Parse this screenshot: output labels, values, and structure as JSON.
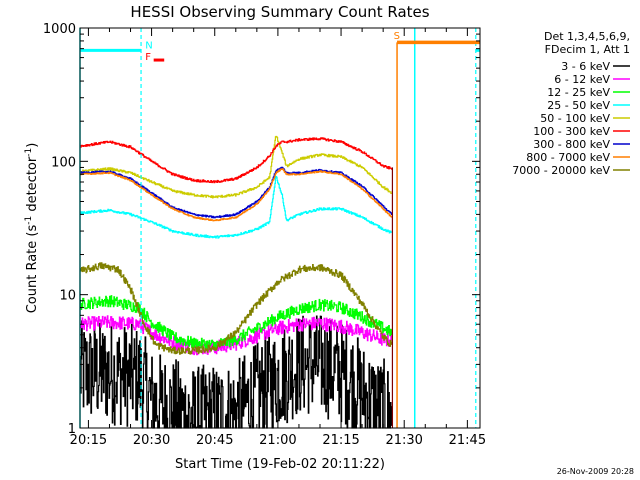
{
  "chart_data": {
    "type": "line",
    "title": "HESSI Observing Summary Count Rates",
    "xlabel": "Start Time (19-Feb-02 20:11:22)",
    "ylabel_main": "Count Rate (s",
    "ylabel_sup1": "-1",
    "ylabel_mid": " detector",
    "ylabel_sup2": "-1",
    "ylabel_end": ")",
    "yscale": "log",
    "ylim": [
      1,
      1000
    ],
    "xlim_min": [
      13,
      108
    ],
    "x_unit": "minutes after 20:00",
    "x_ticks": [
      {
        "value": 15,
        "label": "20:15"
      },
      {
        "value": 30,
        "label": "20:30"
      },
      {
        "value": 45,
        "label": "20:45"
      },
      {
        "value": 60,
        "label": "21:00"
      },
      {
        "value": 75,
        "label": "21:15"
      },
      {
        "value": 90,
        "label": "21:30"
      },
      {
        "value": 105,
        "label": "21:45"
      }
    ],
    "y_ticks": [
      {
        "value": 1,
        "label": "1"
      },
      {
        "value": 10,
        "label": "10"
      },
      {
        "value": 100,
        "label": "100"
      },
      {
        "value": 1000,
        "label": "1000"
      }
    ],
    "legend_header": [
      "Det 1,3,4,5,6,9,",
      "FDecim 1, Att 1"
    ],
    "series": [
      {
        "name": "3 - 6 keV",
        "color": "#000000",
        "noise": 0.9,
        "x": [
          13,
          20,
          27,
          30,
          40,
          50,
          55,
          60,
          65,
          70,
          75,
          78,
          80,
          82,
          84,
          86,
          87
        ],
        "y": [
          2.6,
          2.6,
          2.4,
          1.6,
          1.2,
          1.3,
          1.8,
          2.4,
          3.0,
          3.0,
          2.6,
          2.2,
          1.8,
          1.6,
          1.4,
          1.3,
          1.2
        ]
      },
      {
        "name": "6 - 12 keV",
        "color": "#ff00ff",
        "noise": 0.12,
        "x": [
          13,
          20,
          27,
          30,
          35,
          40,
          45,
          50,
          55,
          60,
          65,
          70,
          75,
          80,
          85,
          87
        ],
        "y": [
          6.0,
          6.2,
          6.0,
          5.2,
          4.4,
          4.0,
          4.0,
          4.3,
          4.9,
          5.6,
          6.0,
          6.1,
          5.8,
          5.2,
          4.6,
          4.5
        ]
      },
      {
        "name": "12 - 25 keV",
        "color": "#00ff00",
        "noise": 0.1,
        "x": [
          13,
          20,
          27,
          30,
          35,
          40,
          45,
          50,
          55,
          60,
          65,
          70,
          75,
          80,
          85,
          87
        ],
        "y": [
          8.5,
          9.0,
          8.0,
          6.2,
          4.8,
          4.3,
          4.2,
          4.6,
          5.6,
          6.8,
          7.8,
          8.4,
          8.0,
          6.8,
          5.6,
          5.2
        ]
      },
      {
        "name": "25 - 50 keV",
        "color": "#00ffff",
        "noise": 0.02,
        "x": [
          13,
          20,
          25,
          30,
          35,
          40,
          45,
          50,
          55,
          58,
          59.5,
          61,
          62,
          65,
          70,
          75,
          80,
          85,
          87
        ],
        "y": [
          41,
          43,
          40,
          35,
          30,
          28,
          27,
          28,
          31,
          35,
          78,
          55,
          36,
          40,
          44,
          44,
          38,
          31,
          29
        ]
      },
      {
        "name": "50 - 100 keV",
        "color": "#cccc00",
        "noise": 0.02,
        "x": [
          13,
          20,
          25,
          30,
          35,
          40,
          45,
          50,
          55,
          58,
          59.5,
          61,
          62,
          65,
          70,
          75,
          80,
          85,
          87
        ],
        "y": [
          84,
          88,
          82,
          70,
          60,
          56,
          54,
          56,
          64,
          76,
          158,
          115,
          92,
          104,
          112,
          108,
          90,
          64,
          58
        ]
      },
      {
        "name": "100 - 300 keV",
        "color": "#ff0000",
        "noise": 0.02,
        "x": [
          13,
          20,
          25,
          30,
          35,
          40,
          45,
          50,
          55,
          58,
          59.5,
          61,
          62,
          65,
          70,
          75,
          80,
          85,
          87
        ],
        "y": [
          130,
          140,
          128,
          100,
          80,
          72,
          70,
          74,
          90,
          110,
          130,
          140,
          140,
          145,
          148,
          140,
          118,
          92,
          88
        ]
      },
      {
        "name": "300 - 800 keV",
        "color": "#0000cc",
        "noise": 0.015,
        "x": [
          13,
          20,
          25,
          30,
          35,
          40,
          45,
          50,
          55,
          58,
          59.5,
          61,
          62,
          65,
          70,
          75,
          80,
          85,
          87
        ],
        "y": [
          82,
          84,
          74,
          58,
          45,
          40,
          38,
          40,
          50,
          64,
          85,
          90,
          82,
          82,
          86,
          82,
          65,
          46,
          40
        ]
      },
      {
        "name": "800 - 7000 keV",
        "color": "#ff7f00",
        "noise": 0.012,
        "x": [
          13,
          20,
          25,
          30,
          35,
          40,
          45,
          50,
          55,
          58,
          59.5,
          61,
          62,
          65,
          70,
          75,
          80,
          85,
          87
        ],
        "y": [
          80,
          82,
          72,
          56,
          44,
          38,
          36,
          38,
          48,
          62,
          82,
          88,
          80,
          80,
          84,
          80,
          62,
          44,
          38
        ]
      },
      {
        "name": "7000 - 20000 keV",
        "color": "#808000",
        "noise": 0.06,
        "x": [
          13,
          18,
          22,
          25,
          28,
          31,
          35,
          40,
          45,
          50,
          55,
          60,
          65,
          70,
          75,
          80,
          85,
          87
        ],
        "y": [
          15,
          16.5,
          15.5,
          11,
          6.2,
          4.2,
          3.8,
          3.8,
          4.0,
          5.2,
          8.5,
          12.5,
          15.5,
          16,
          14,
          8.5,
          4.8,
          4.2
        ]
      }
    ],
    "annotations": [
      {
        "text": "N",
        "x": 28.5,
        "y": 700,
        "color": "#00ffff"
      },
      {
        "text": "F",
        "x": 28.5,
        "y": 575,
        "color": "#ff0000"
      },
      {
        "text": "S",
        "x": 87.5,
        "y": 830,
        "color": "#ff7f00"
      }
    ],
    "flags": {
      "night_solid": [
        [
          13
        ],
        [
          92.5
        ]
      ],
      "night_dashed": [
        [
          27.5
        ],
        [
          107
        ]
      ],
      "night_bar": [
        [
          13,
          27.5
        ],
        [
          107,
          108
        ]
      ],
      "night_bar_level": 680,
      "saa_color": "#ff7f00",
      "saa_vline": 88.3,
      "saa_bar": [
        88.3,
        108
      ],
      "saa_bar_level": 780,
      "flare_bar": [
        30.5,
        33
      ],
      "flare_bar_level": 575,
      "gap_x": 87.2
    },
    "footer_date": "26-Nov-2009 20:28"
  }
}
